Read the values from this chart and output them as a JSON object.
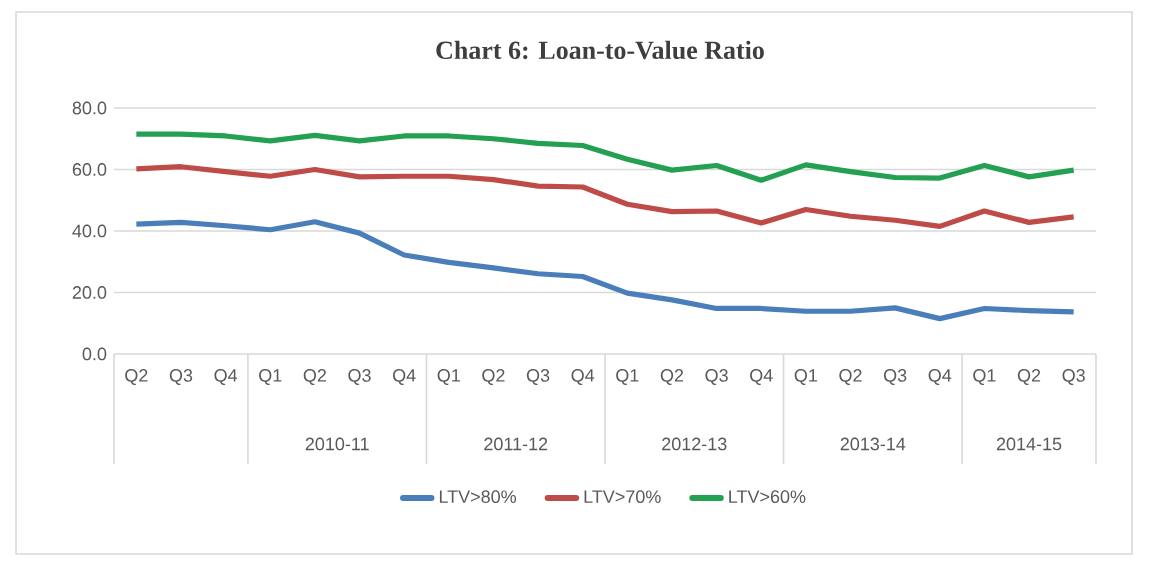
{
  "chart_data": {
    "type": "line",
    "title": "Chart 6: Loan-to-Value Ratio",
    "categories": [
      "Q2",
      "Q3",
      "Q4",
      "Q1",
      "Q2",
      "Q3",
      "Q4",
      "Q1",
      "Q2",
      "Q3",
      "Q4",
      "Q1",
      "Q2",
      "Q3",
      "Q4",
      "Q1",
      "Q2",
      "Q3",
      "Q4",
      "Q1",
      "Q2",
      "Q3"
    ],
    "annotations": [
      "2010-11",
      "2011-12",
      "2012-13",
      "2013-14",
      "2014-15"
    ],
    "series": [
      {
        "name": "LTV>80%",
        "color": "#4a7ebb",
        "values": [
          42.2,
          42.8,
          41.7,
          40.4,
          43.0,
          39.3,
          32.2,
          29.8,
          28.0,
          26.1,
          25.2,
          19.8,
          17.6,
          14.8,
          14.8,
          13.9,
          13.9,
          15.0,
          11.5,
          14.8,
          14.1,
          13.7
        ]
      },
      {
        "name": "LTV>70%",
        "color": "#be4b48",
        "values": [
          60.2,
          60.9,
          59.3,
          57.8,
          60.0,
          57.6,
          57.8,
          57.8,
          56.7,
          54.6,
          54.3,
          48.7,
          46.3,
          46.5,
          42.6,
          47.0,
          44.8,
          43.5,
          41.5,
          46.5,
          42.8,
          44.6
        ]
      },
      {
        "name": "LTV>60%",
        "color": "#23a052",
        "values": [
          71.5,
          71.5,
          70.9,
          69.3,
          71.1,
          69.3,
          70.9,
          70.9,
          70.0,
          68.5,
          67.8,
          63.3,
          59.8,
          61.3,
          56.5,
          61.5,
          59.3,
          57.4,
          57.2,
          61.3,
          57.6,
          59.8
        ]
      }
    ],
    "ylim": [
      0,
      80
    ],
    "yticks": [
      {
        "value": 0,
        "label": "0.0"
      },
      {
        "value": 20,
        "label": "20.0"
      },
      {
        "value": 40,
        "label": "40.0"
      },
      {
        "value": 60,
        "label": "60.0"
      },
      {
        "value": 80,
        "label": "80.0"
      }
    ],
    "grid": "y",
    "legend": "bottom",
    "marker": "none",
    "line_style": "solid"
  }
}
